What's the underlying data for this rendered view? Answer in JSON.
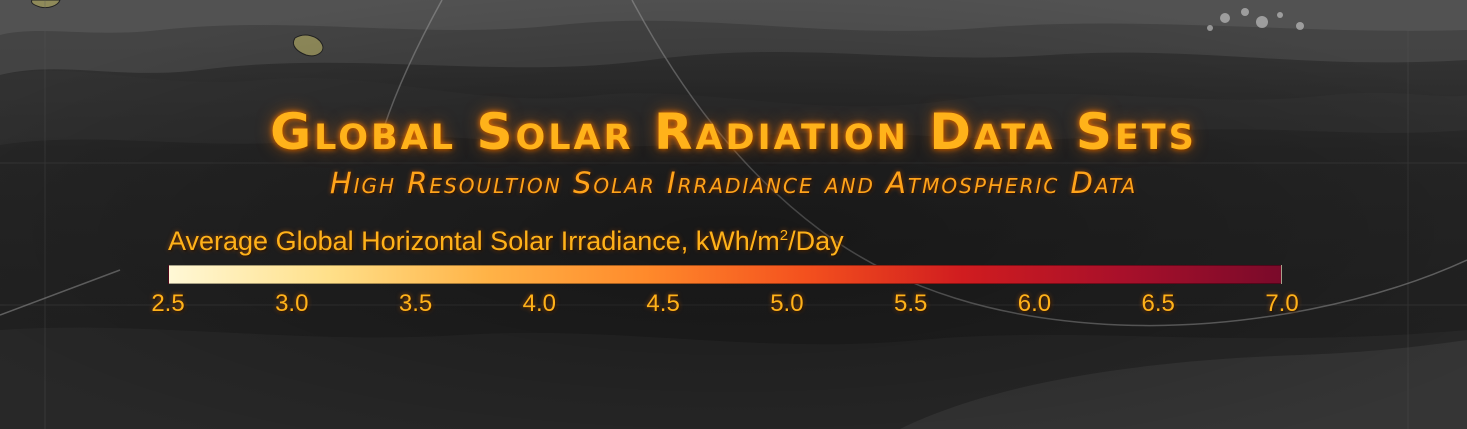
{
  "header": {
    "title": "Global Solar Radiation Data Sets",
    "subtitle": "High Resoultion Solar Irradiance and Atmospheric Data"
  },
  "legend": {
    "label": "Average Global Horizontal Solar Irradiance,  kWh/m",
    "label_superscript": "2",
    "label_suffix": "/Day",
    "min": 2.5,
    "max": 7.0,
    "ticks": [
      "2.5",
      "3.0",
      "3.5",
      "4.0",
      "4.5",
      "5.0",
      "5.5",
      "6.0",
      "6.5",
      "7.0"
    ],
    "gradient_colors": [
      "#fff8d6",
      "#ffe08a",
      "#ffb347",
      "#ff8a2b",
      "#f4511e",
      "#d01c1f",
      "#a8102a",
      "#7a0a2a"
    ]
  },
  "colors": {
    "title": "#ffb21a",
    "background": "#1c1c1c"
  }
}
